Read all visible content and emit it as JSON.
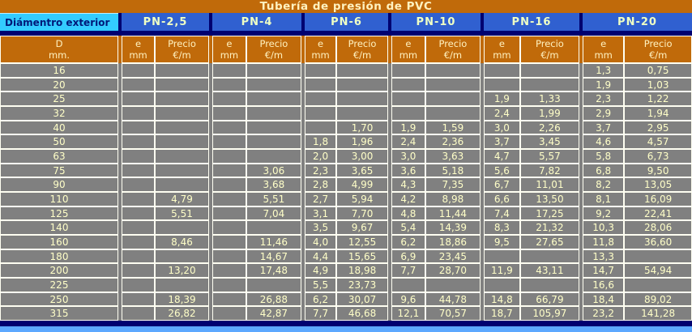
{
  "title": "Tubería de presión de PVC",
  "colors": {
    "page_orange": "#C06A0A",
    "header_cyan": "#33CCFF",
    "header_blue": "#3060D0",
    "navy_separator": "#000070",
    "cell_gray": "#808080",
    "cell_text": "#FFFFC8",
    "border_white": "#FFFFF2",
    "bottom_blue": "#5CA8FF",
    "header_text_navy": "#001878"
  },
  "table": {
    "diameter_header": "Diámentro exterior",
    "diameter_sub": [
      "D",
      "mm."
    ],
    "e_sub": [
      "e",
      "mm"
    ],
    "price_sub": [
      "Precio",
      "€/m"
    ],
    "diameters": [
      "16",
      "20",
      "25",
      "32",
      "40",
      "50",
      "63",
      "75",
      "90",
      "110",
      "125",
      "140",
      "160",
      "180",
      "200",
      "225",
      "250",
      "315"
    ],
    "groups": [
      {
        "label": "PN-2,5",
        "e": [
          "",
          "",
          "",
          "",
          "",
          "",
          "",
          "",
          "",
          "",
          "",
          "",
          "",
          "",
          "",
          "",
          "",
          ""
        ],
        "price": [
          "",
          "",
          "",
          "",
          "",
          "",
          "",
          "",
          "",
          "4,79",
          "5,51",
          "",
          "8,46",
          "",
          "13,20",
          "",
          "18,39",
          "26,82"
        ]
      },
      {
        "label": "PN-4",
        "e": [
          "",
          "",
          "",
          "",
          "",
          "",
          "",
          "",
          "",
          "",
          "",
          "",
          "",
          "",
          "",
          "",
          "",
          ""
        ],
        "price": [
          "",
          "",
          "",
          "",
          "",
          "",
          "",
          "3,06",
          "3,68",
          "5,51",
          "7,04",
          "",
          "11,46",
          "14,67",
          "17,48",
          "",
          "26,88",
          "42,87"
        ]
      },
      {
        "label": "PN-6",
        "e": [
          "",
          "",
          "",
          "",
          "",
          "1,8",
          "2,0",
          "2,3",
          "2,8",
          "2,7",
          "3,1",
          "3,5",
          "4,0",
          "4,4",
          "4,9",
          "5,5",
          "6,2",
          "7,7"
        ],
        "price": [
          "",
          "",
          "",
          "",
          "1,70",
          "1,96",
          "3,00",
          "3,65",
          "4,99",
          "5,94",
          "7,70",
          "9,67",
          "12,55",
          "15,65",
          "18,98",
          "23,73",
          "30,07",
          "46,68"
        ]
      },
      {
        "label": "PN-10",
        "e": [
          "",
          "",
          "",
          "",
          "1,9",
          "2,4",
          "3,0",
          "3,6",
          "4,3",
          "4,2",
          "4,8",
          "5,4",
          "6,2",
          "6,9",
          "7,7",
          "",
          "9,6",
          "12,1"
        ],
        "price": [
          "",
          "",
          "",
          "",
          "1,59",
          "2,36",
          "3,63",
          "5,18",
          "7,35",
          "8,98",
          "11,44",
          "14,39",
          "18,86",
          "23,45",
          "28,70",
          "",
          "44,78",
          "70,57"
        ]
      },
      {
        "label": "PN-16",
        "e": [
          "",
          "",
          "1,9",
          "2,4",
          "3,0",
          "3,7",
          "4,7",
          "5,6",
          "6,7",
          "6,6",
          "7,4",
          "8,3",
          "9,5",
          "",
          "11,9",
          "",
          "14,8",
          "18,7"
        ],
        "price": [
          "",
          "",
          "1,33",
          "1,99",
          "2,26",
          "3,45",
          "5,57",
          "7,82",
          "11,01",
          "13,50",
          "17,25",
          "21,32",
          "27,65",
          "",
          "43,11",
          "",
          "66,79",
          "105,97"
        ]
      },
      {
        "label": "PN-20",
        "e": [
          "1,3",
          "1,9",
          "2,3",
          "2,9",
          "3,7",
          "4,6",
          "5,8",
          "6,8",
          "8,2",
          "8,1",
          "9,2",
          "10,3",
          "11,8",
          "13,3",
          "14,7",
          "16,6",
          "18,4",
          "23,2"
        ],
        "price": [
          "0,75",
          "1,03",
          "1,22",
          "1,94",
          "2,95",
          "4,57",
          "6,73",
          "9,50",
          "13,05",
          "16,09",
          "22,41",
          "28,06",
          "36,60",
          "",
          "54,94",
          "",
          "89,02",
          "141,28"
        ]
      }
    ]
  }
}
